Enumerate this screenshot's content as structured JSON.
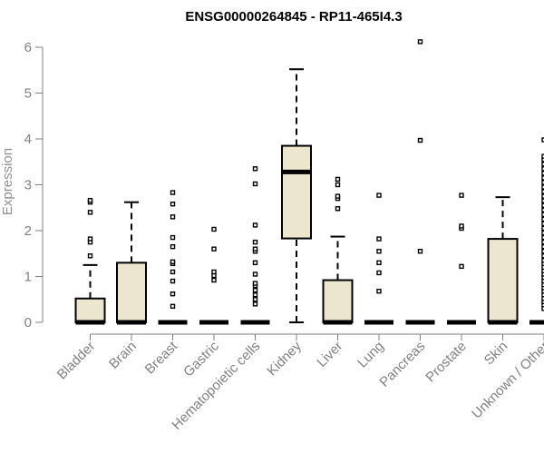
{
  "chart_data": {
    "type": "boxplot",
    "title": "ENSG00000264845 - RP11-465I4.3",
    "xlabel": "",
    "ylabel": "Expression",
    "ylim": [
      0,
      6.25
    ],
    "yticks": [
      0,
      1,
      2,
      3,
      4,
      5,
      6
    ],
    "grid": false,
    "legend": "none",
    "colors": {
      "box_fill": "#ede6cf",
      "box_stroke": "#000000",
      "axis": "#808080",
      "axis_text": "#808080",
      "title": "#000000"
    },
    "categories": [
      "Bladder",
      "Brain",
      "Breast",
      "Gastric",
      "Hematopoietic cells",
      "Kidney",
      "Liver",
      "Lung",
      "Pancreas",
      "Prostate",
      "Skin",
      "Unknown / Other"
    ],
    "boxes": [
      {
        "category": "Bladder",
        "min": 0,
        "q1": 0,
        "median": 0,
        "q3": 0.52,
        "max": 1.25,
        "outliers": [
          1.45,
          1.75,
          1.82,
          2.4,
          2.62,
          2.66
        ]
      },
      {
        "category": "Brain",
        "min": 0,
        "q1": 0,
        "median": 0,
        "q3": 1.3,
        "max": 2.62,
        "outliers": []
      },
      {
        "category": "Breast",
        "min": 0,
        "q1": 0,
        "median": 0,
        "q3": 0,
        "max": 0,
        "outliers": [
          0.35,
          0.62,
          0.9,
          1.1,
          1.28,
          1.32,
          1.65,
          1.85,
          2.3,
          2.58,
          2.83
        ]
      },
      {
        "category": "Gastric",
        "min": 0,
        "q1": 0,
        "median": 0,
        "q3": 0,
        "max": 0,
        "outliers": [
          0.92,
          1.02,
          1.1,
          1.6,
          2.03
        ]
      },
      {
        "category": "Hematopoietic cells",
        "min": 0,
        "q1": 0,
        "median": 0,
        "q3": 0,
        "max": 0,
        "outliers": [
          0.4,
          0.5,
          0.6,
          0.7,
          0.8,
          0.85,
          1.05,
          1.3,
          1.55,
          1.6,
          1.75,
          2.12,
          3.02,
          3.35
        ]
      },
      {
        "category": "Kidney",
        "min": 0,
        "q1": 1.83,
        "median": 3.28,
        "q3": 3.85,
        "max": 5.52,
        "outliers": []
      },
      {
        "category": "Liver",
        "min": 0,
        "q1": 0,
        "median": 0,
        "q3": 0.92,
        "max": 1.87,
        "outliers": [
          2.48,
          2.7,
          2.75,
          3.0,
          3.12
        ]
      },
      {
        "category": "Lung",
        "min": 0,
        "q1": 0,
        "median": 0,
        "q3": 0,
        "max": 0,
        "outliers": [
          0.68,
          1.08,
          1.3,
          1.55,
          1.82,
          2.77
        ]
      },
      {
        "category": "Pancreas",
        "min": 0,
        "q1": 0,
        "median": 0,
        "q3": 0,
        "max": 0,
        "outliers": [
          1.55,
          3.97,
          6.12
        ]
      },
      {
        "category": "Prostate",
        "min": 0,
        "q1": 0,
        "median": 0,
        "q3": 0,
        "max": 0,
        "outliers": [
          1.22,
          2.05,
          2.1,
          2.77
        ]
      },
      {
        "category": "Skin",
        "min": 0,
        "q1": 0,
        "median": 0,
        "q3": 1.82,
        "max": 2.73,
        "outliers": []
      },
      {
        "category": "Unknown / Other",
        "min": 0,
        "q1": 0,
        "median": 0,
        "q3": 0,
        "max": 0,
        "outliers": [
          0.3,
          0.38,
          0.45,
          0.52,
          0.6,
          0.68,
          0.75,
          0.82,
          0.9,
          0.98,
          1.05,
          1.12,
          1.2,
          1.28,
          1.35,
          1.45,
          1.55,
          1.65,
          1.75,
          1.85,
          1.95,
          2.05,
          2.15,
          2.25,
          2.35,
          2.45,
          2.55,
          2.65,
          2.75,
          2.85,
          2.95,
          3.05,
          3.15,
          3.25,
          3.35,
          3.45,
          3.55,
          3.62,
          3.98
        ]
      }
    ]
  }
}
